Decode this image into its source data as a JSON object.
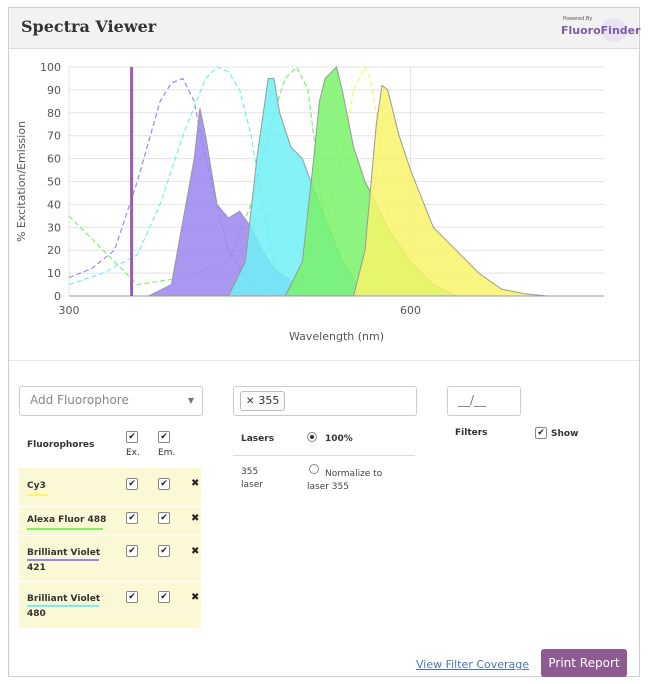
{
  "header": {
    "title": "Spectra Viewer",
    "logo_small": "Powered By",
    "logo_name": "FluoroFinder"
  },
  "chart_data": {
    "type": "area",
    "xlabel": "Wavelength (nm)",
    "ylabel": "% Excitation/Emission",
    "xlim": [
      300,
      770
    ],
    "ylim": [
      0,
      100
    ],
    "x_ticks": [
      300,
      600
    ],
    "y_ticks": [
      0,
      10,
      20,
      30,
      40,
      50,
      60,
      70,
      80,
      90,
      100
    ],
    "laser_line": {
      "wavelength": 355,
      "color": "#9b59b6"
    },
    "grid": true,
    "series": [
      {
        "color": "#9b85f0",
        "kind": "emission",
        "x": [
          370,
          390,
          410,
          415,
          420,
          430,
          440,
          450,
          460,
          470,
          480,
          500,
          520
        ],
        "y": [
          0,
          5,
          60,
          82,
          70,
          40,
          34,
          37,
          30,
          20,
          12,
          5,
          0
        ]
      },
      {
        "color": "#9b85f0",
        "kind": "excitation",
        "x": [
          300,
          320,
          340,
          360,
          380,
          390,
          400,
          410,
          420,
          440,
          460,
          480
        ],
        "y": [
          8,
          12,
          20,
          50,
          85,
          93,
          95,
          85,
          60,
          20,
          5,
          0
        ]
      },
      {
        "color": "#6ff0f5",
        "kind": "emission",
        "x": [
          440,
          455,
          465,
          475,
          480,
          485,
          495,
          505,
          520,
          540,
          560
        ],
        "y": [
          0,
          15,
          60,
          95,
          95,
          80,
          65,
          60,
          40,
          15,
          0
        ]
      },
      {
        "color": "#6ff0f5",
        "kind": "excitation",
        "x": [
          300,
          330,
          360,
          380,
          400,
          420,
          430,
          440,
          450,
          460,
          470,
          480,
          490
        ],
        "y": [
          5,
          10,
          18,
          40,
          70,
          95,
          100,
          98,
          90,
          70,
          40,
          15,
          0
        ]
      },
      {
        "color": "#79f26a",
        "kind": "emission",
        "x": [
          490,
          505,
          515,
          520,
          525,
          535,
          540,
          550,
          560,
          580,
          600,
          620,
          640
        ],
        "y": [
          0,
          15,
          60,
          85,
          95,
          100,
          90,
          65,
          50,
          30,
          15,
          5,
          0
        ]
      },
      {
        "color": "#79f26a",
        "kind": "excitation",
        "x": [
          300,
          330,
          360,
          400,
          440,
          460,
          480,
          490,
          500,
          510,
          520,
          530
        ],
        "y": [
          35,
          20,
          5,
          8,
          15,
          40,
          80,
          95,
          100,
          90,
          50,
          10
        ]
      },
      {
        "color": "#f7f56a",
        "kind": "emission",
        "x": [
          550,
          560,
          570,
          575,
          580,
          590,
          600,
          620,
          640,
          660,
          680,
          700,
          720
        ],
        "y": [
          0,
          20,
          75,
          92,
          90,
          70,
          55,
          30,
          20,
          10,
          3,
          1,
          0
        ]
      },
      {
        "color": "#f7f56a",
        "kind": "excitation",
        "x": [
          480,
          500,
          520,
          540,
          550,
          560,
          565,
          570,
          580,
          590
        ],
        "y": [
          0,
          5,
          20,
          60,
          90,
          100,
          95,
          80,
          40,
          10
        ]
      }
    ]
  },
  "controls": {
    "add_fluorophore_placeholder": "Add Fluorophore",
    "laser_chip": "355",
    "filter_box_text": "__/__"
  },
  "fluor_table": {
    "header_fluor": "Fluorophores",
    "header_ex": "Ex.",
    "header_em": "Em.",
    "rows": [
      {
        "name_line1": "Cy3",
        "name_line2": "",
        "underline": "#f7f56a"
      },
      {
        "name_line1": "Alexa Fluor 488",
        "name_line2": "",
        "underline": "#79f26a"
      },
      {
        "name_line1": "Brilliant Violet",
        "name_line2": "421",
        "underline": "#9b85f0"
      },
      {
        "name_line1": "Brilliant Violet",
        "name_line2": "480",
        "underline": "#6ff0f5"
      }
    ]
  },
  "lasers": {
    "header": "Lasers",
    "option_100": "100%",
    "laser_name_line1": "355",
    "laser_name_line2": "laser",
    "normalize_line1": "Normalize to",
    "normalize_line2": "laser 355"
  },
  "filters": {
    "header": "Filters",
    "show_label": "Show"
  },
  "footer": {
    "link_label": "View Filter Coverage",
    "print_label": "Print Report"
  }
}
